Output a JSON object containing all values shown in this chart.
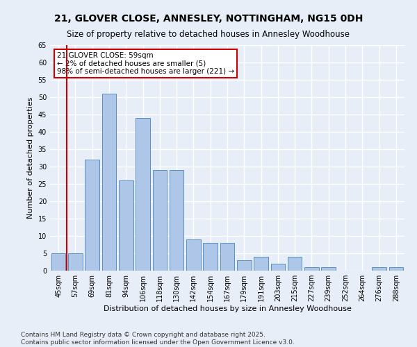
{
  "title": "21, GLOVER CLOSE, ANNESLEY, NOTTINGHAM, NG15 0DH",
  "subtitle": "Size of property relative to detached houses in Annesley Woodhouse",
  "xlabel": "Distribution of detached houses by size in Annesley Woodhouse",
  "ylabel": "Number of detached properties",
  "categories": [
    "45sqm",
    "57sqm",
    "69sqm",
    "81sqm",
    "94sqm",
    "106sqm",
    "118sqm",
    "130sqm",
    "142sqm",
    "154sqm",
    "167sqm",
    "179sqm",
    "191sqm",
    "203sqm",
    "215sqm",
    "227sqm",
    "239sqm",
    "252sqm",
    "264sqm",
    "276sqm",
    "288sqm"
  ],
  "values": [
    5,
    5,
    32,
    51,
    26,
    44,
    29,
    29,
    9,
    8,
    8,
    3,
    4,
    2,
    4,
    1,
    1,
    0,
    0,
    1,
    1
  ],
  "bar_color": "#aec6e8",
  "bar_edge_color": "#5a8fc2",
  "marker_color": "#cc0000",
  "annotation_text": "21 GLOVER CLOSE: 59sqm\n← 2% of detached houses are smaller (5)\n98% of semi-detached houses are larger (221) →",
  "annotation_box_color": "#ffffff",
  "annotation_border_color": "#cc0000",
  "ylim": [
    0,
    65
  ],
  "yticks": [
    0,
    5,
    10,
    15,
    20,
    25,
    30,
    35,
    40,
    45,
    50,
    55,
    60,
    65
  ],
  "footer": "Contains HM Land Registry data © Crown copyright and database right 2025.\nContains public sector information licensed under the Open Government Licence v3.0.",
  "bg_color": "#e8eef7",
  "grid_color": "#ffffff",
  "title_fontsize": 10,
  "subtitle_fontsize": 8.5,
  "axis_label_fontsize": 8,
  "tick_fontsize": 7,
  "footer_fontsize": 6.5,
  "annotation_fontsize": 7.5
}
